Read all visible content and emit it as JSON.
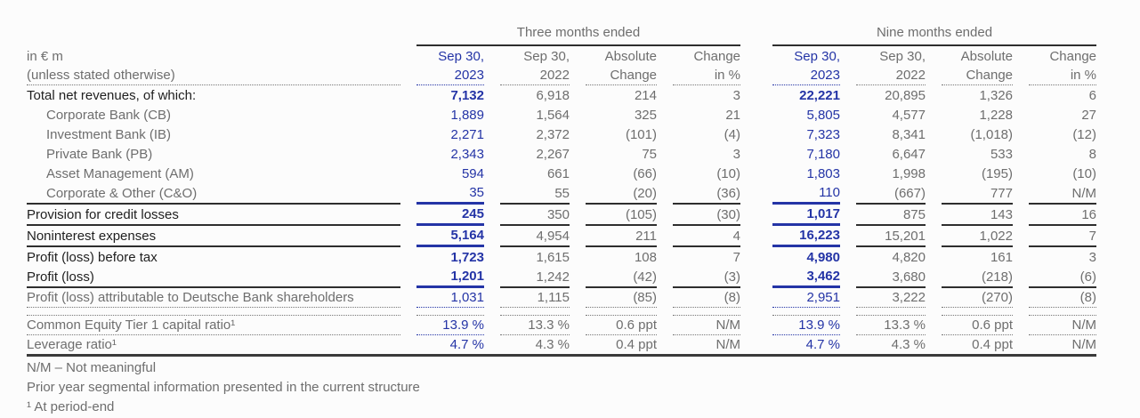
{
  "table": {
    "unit_label_line1": "in € m",
    "unit_label_line2": "(unless stated otherwise)",
    "group_headers": [
      "Three months ended",
      "Nine months ended"
    ],
    "columns": [
      {
        "line1": "Sep 30,",
        "line2": "2023",
        "current": true
      },
      {
        "line1": "Sep 30,",
        "line2": "2022",
        "current": false
      },
      {
        "line1": "Absolute",
        "line2": "Change",
        "current": false
      },
      {
        "line1": "Change",
        "line2": "in %",
        "current": false
      },
      {
        "line1": "Sep 30,",
        "line2": "2023",
        "current": true
      },
      {
        "line1": "Sep 30,",
        "line2": "2022",
        "current": false
      },
      {
        "line1": "Absolute",
        "line2": "Change",
        "current": false
      },
      {
        "line1": "Change",
        "line2": "in %",
        "current": false
      }
    ],
    "rows": [
      {
        "label": "Total net revenues, of which:",
        "type": "section",
        "rule": null,
        "values": [
          "7,132",
          "6,918",
          "214",
          "3",
          "22,221",
          "20,895",
          "1,326",
          "6"
        ]
      },
      {
        "label": "Corporate Bank (CB)",
        "type": "sub",
        "rule": null,
        "values": [
          "1,889",
          "1,564",
          "325",
          "21",
          "5,805",
          "4,577",
          "1,228",
          "27"
        ]
      },
      {
        "label": "Investment Bank (IB)",
        "type": "sub",
        "rule": null,
        "values": [
          "2,271",
          "2,372",
          "(101)",
          "(4)",
          "7,323",
          "8,341",
          "(1,018)",
          "(12)"
        ]
      },
      {
        "label": "Private Bank (PB)",
        "type": "sub",
        "rule": null,
        "values": [
          "2,343",
          "2,267",
          "75",
          "3",
          "7,180",
          "6,647",
          "533",
          "8"
        ]
      },
      {
        "label": "Asset Management (AM)",
        "type": "sub",
        "rule": null,
        "values": [
          "594",
          "661",
          "(66)",
          "(10)",
          "1,803",
          "1,998",
          "(195)",
          "(10)"
        ]
      },
      {
        "label": "Corporate & Other (C&O)",
        "type": "sub",
        "rule": "solid",
        "values": [
          "35",
          "55",
          "(20)",
          "(36)",
          "110",
          "(667)",
          "777",
          "N/M"
        ]
      },
      {
        "label": "Provision for credit losses",
        "type": "section",
        "rule": "solid",
        "values": [
          "245",
          "350",
          "(105)",
          "(30)",
          "1,017",
          "875",
          "143",
          "16"
        ]
      },
      {
        "label": "Noninterest expenses",
        "type": "section",
        "rule": "solid",
        "values": [
          "5,164",
          "4,954",
          "211",
          "4",
          "16,223",
          "15,201",
          "1,022",
          "7"
        ]
      },
      {
        "label": "Profit (loss) before tax",
        "type": "section",
        "rule": null,
        "values": [
          "1,723",
          "1,615",
          "108",
          "7",
          "4,980",
          "4,820",
          "161",
          "3"
        ]
      },
      {
        "label": "Profit (loss)",
        "type": "section",
        "rule": "solid",
        "values": [
          "1,201",
          "1,242",
          "(42)",
          "(3)",
          "3,462",
          "3,680",
          "(218)",
          "(6)"
        ]
      },
      {
        "label": "Profit (loss) attributable to Deutsche Bank shareholders",
        "type": "minor",
        "rule": "dotted",
        "values": [
          "1,031",
          "1,115",
          "(85)",
          "(8)",
          "2,951",
          "3,222",
          "(270)",
          "(8)"
        ]
      }
    ],
    "ratio_rows": [
      {
        "label": "Common Equity Tier 1 capital ratio¹",
        "type": "ratio",
        "rule": "dotted",
        "rule_top": "dotted",
        "values": [
          "13.9 %",
          "13.3 %",
          "0.6 ppt",
          "N/M",
          "13.9 %",
          "13.3 %",
          "0.6 ppt",
          "N/M"
        ]
      },
      {
        "label": "Leverage ratio¹",
        "type": "ratio",
        "rule": null,
        "rule_top": null,
        "values": [
          "4.7 %",
          "4.3 %",
          "0.4 ppt",
          "N/M",
          "4.7 %",
          "4.3 %",
          "0.4 ppt",
          "N/M"
        ]
      }
    ]
  },
  "footnotes": [
    "N/M – Not meaningful",
    "Prior year segmental information presented in the current structure",
    "¹ At period-end"
  ],
  "colors": {
    "accent_blue": "#2434a6",
    "text_gray": "#6e6e6e",
    "text_black": "#1f1f1f",
    "rule_dark": "#2e2e2e"
  }
}
